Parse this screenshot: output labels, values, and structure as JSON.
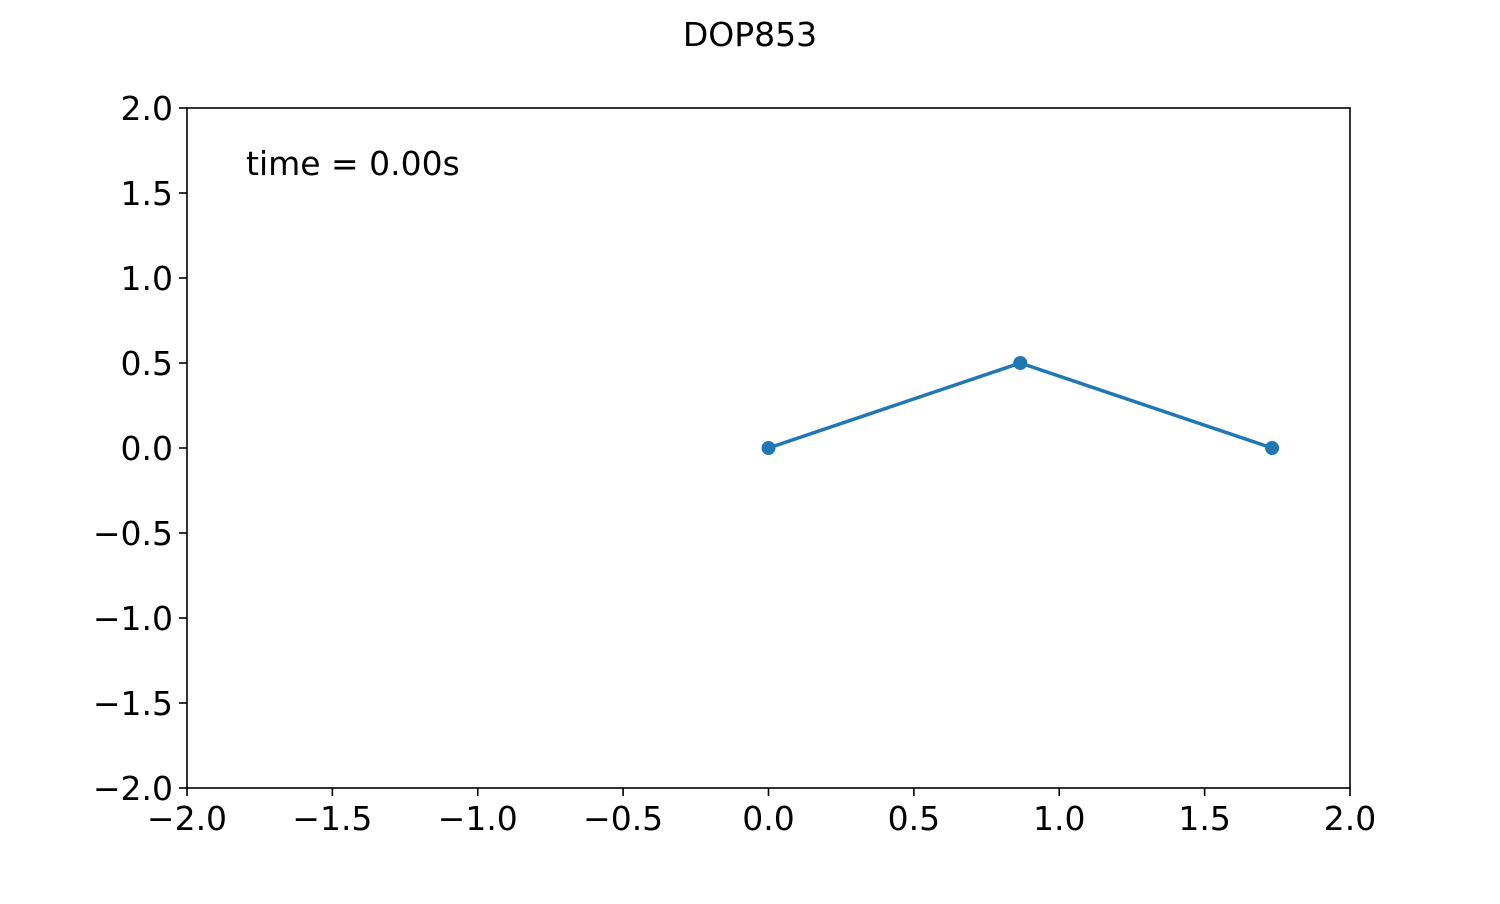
{
  "chart_data": {
    "type": "line",
    "title": "DOP853",
    "xlabel": "",
    "ylabel": "",
    "xlim": [
      -2.0,
      2.0
    ],
    "ylim": [
      -2.0,
      2.0
    ],
    "x_ticks": [
      -2.0,
      -1.5,
      -1.0,
      -0.5,
      0.0,
      0.5,
      1.0,
      1.5,
      2.0
    ],
    "x_tick_labels": [
      "−2.0",
      "−1.5",
      "−1.0",
      "−0.5",
      "0.0",
      "0.5",
      "1.0",
      "1.5",
      "2.0"
    ],
    "y_ticks": [
      -2.0,
      -1.5,
      -1.0,
      -0.5,
      0.0,
      0.5,
      1.0,
      1.5,
      2.0
    ],
    "y_tick_labels": [
      "−2.0",
      "−1.5",
      "−1.0",
      "−0.5",
      "0.0",
      "0.5",
      "1.0",
      "1.5",
      "2.0"
    ],
    "grid": false,
    "annotation": "time = 0.00s",
    "series": [
      {
        "x": [
          0.0,
          0.866,
          1.732
        ],
        "y": [
          0.0,
          0.5,
          0.0
        ],
        "color": "#1f77b4",
        "marker": "circle"
      }
    ]
  }
}
